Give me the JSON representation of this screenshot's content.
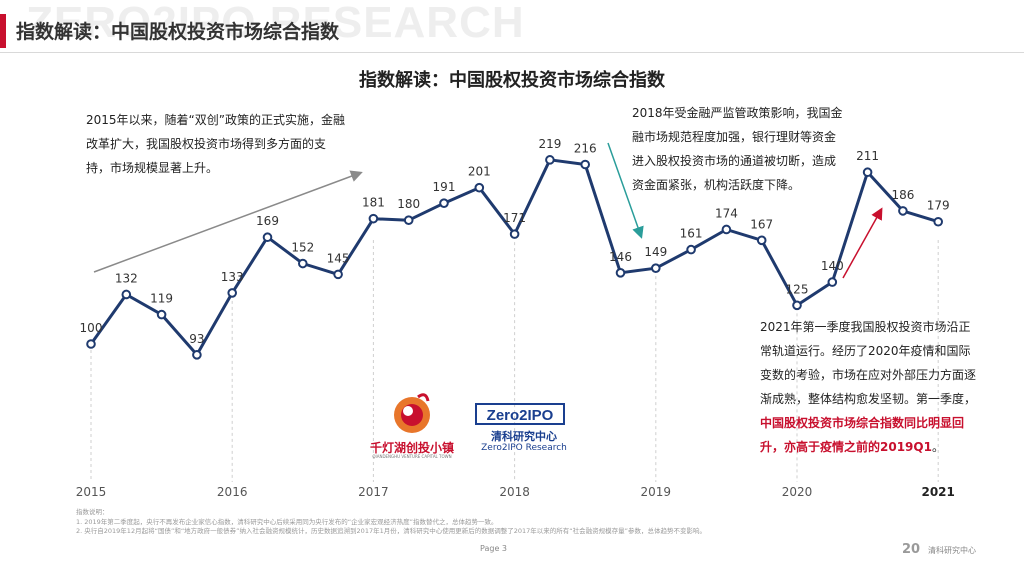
{
  "header": {
    "watermark": "ZERO2IPO RESEARCH",
    "title": "指数解读：中国股权投资市场综合指数"
  },
  "chart_data": {
    "type": "line",
    "title": "指数解读：中国股权投资市场综合指数",
    "x": [
      "2015Q1",
      "2015Q2",
      "2015Q3",
      "2015Q4",
      "2016Q1",
      "2016Q2",
      "2016Q3",
      "2016Q4",
      "2017Q1",
      "2017Q2",
      "2017Q3",
      "2017Q4",
      "2018Q1",
      "2018Q2",
      "2018Q3",
      "2018Q4",
      "2019Q1",
      "2019Q2",
      "2019Q3",
      "2019Q4",
      "2020Q1",
      "2020Q2",
      "2020Q3",
      "2020Q4",
      "2021Q1"
    ],
    "values": [
      100,
      132,
      119,
      93,
      133,
      169,
      152,
      145,
      181,
      180,
      191,
      201,
      171,
      219,
      216,
      146,
      149,
      161,
      174,
      167,
      125,
      140,
      211,
      186,
      179
    ],
    "year_labels": [
      "2015",
      "2016",
      "2017",
      "2018",
      "2019",
      "2020",
      "2021"
    ],
    "line_color": "#1f3a6e",
    "marker": "circle",
    "grid": false
  },
  "annotations": {
    "note1": "2015年以来，随着“双创”政策的正式实施，金融改革扩大，我国股权投资市场得到多方面的支持，市场规模显著上升。",
    "note2": "2018年受金融严监管政策影响，我国金融市场规范程度加强，银行理财等资金进入股权投资市场的通道被切断，造成资金面紧张，机构活跃度下降。",
    "note3_plain": "2021年第一季度我国股权投资市场沿正常轨道运行。经历了2020年疫情和国际变数的考验，市场在应对外部压力方面逐渐成熟，整体结构愈发坚韧。第一季度，",
    "note3_highlight": "中国股权投资市场综合指数同比明显回升，亦高于疫情之前的2019Q1",
    "note3_end": "。",
    "arrow_gray": "#8a8a8a",
    "arrow_teal": "#2a9d9a",
    "arrow_red": "#c8102e"
  },
  "logos": {
    "qiandenghu_name": "千灯湖创投小镇",
    "qiandenghu_sub": "QIANDENGHU VENTURE CAPITAL TOWN",
    "zero2ipo_mark": "Zero2IPO",
    "zero2ipo_cn": "清科研究中心",
    "zero2ipo_en": "Zero2IPO Research"
  },
  "footnotes": {
    "heading": "指数说明：",
    "line1": "1. 2019年第二季度起，央行不再发布企业家信心指数，清科研究中心后续采用同为央行发布的“企业家宏观经济热度”指数替代之，总体趋势一致。",
    "line2": "2. 央行自2019年12月起将“国债”和“地方政府一般债券”纳入社会融资规模统计，历史数据追溯到2017年1月份，清科研究中心使用更新后的数据调整了2017年以来的所有“社会融资规模存量”参数，总体趋势不变影响。"
  },
  "footer": {
    "page_label": "Page  3",
    "brand_mark": "20",
    "brand_text": "清科研究中心"
  }
}
